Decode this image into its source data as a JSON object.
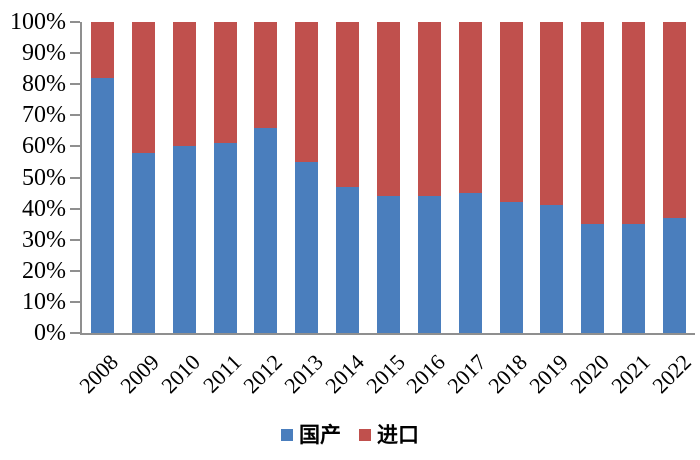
{
  "chart_data": {
    "type": "bar",
    "subtype": "stacked-100-percent-column",
    "title": "",
    "xlabel": "",
    "ylabel": "",
    "categories": [
      "2008",
      "2009",
      "2010",
      "2011",
      "2012",
      "2013",
      "2014",
      "2015",
      "2016",
      "2017",
      "2018",
      "2019",
      "2020",
      "2021",
      "2022"
    ],
    "series": [
      {
        "name": "国产",
        "color": "#4A7EBD",
        "values": [
          82,
          58,
          60,
          61,
          66,
          55,
          47,
          44,
          44,
          45,
          42,
          41,
          35,
          35,
          37
        ]
      },
      {
        "name": "进口",
        "color": "#C0504D",
        "values": [
          18,
          42,
          40,
          39,
          34,
          45,
          53,
          56,
          56,
          55,
          58,
          59,
          65,
          65,
          63
        ]
      }
    ],
    "y_ticks": [
      "100%",
      "90%",
      "80%",
      "70%",
      "60%",
      "50%",
      "40%",
      "30%",
      "20%",
      "10%",
      "0%"
    ],
    "ylim": [
      0,
      100
    ],
    "grid": false,
    "legend_position": "bottom"
  },
  "legend": {
    "items": [
      {
        "label": "国产",
        "color": "#4A7EBD"
      },
      {
        "label": "进口",
        "color": "#C0504D"
      }
    ]
  },
  "colors": {
    "axis": "#8f8f8f",
    "text": "#000000",
    "background": "#ffffff",
    "domestic_blue": "#4A7EBD",
    "import_red": "#C0504D"
  }
}
